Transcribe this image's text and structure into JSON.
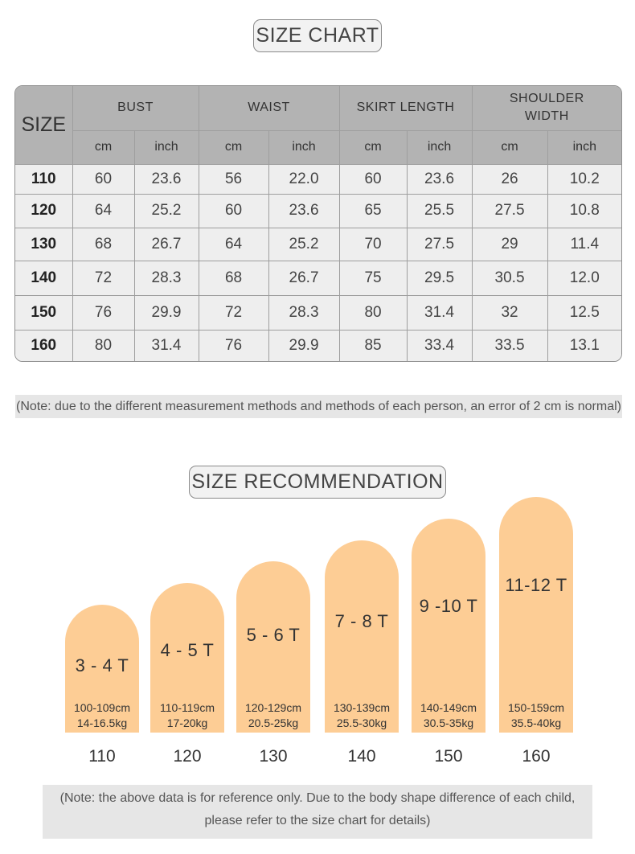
{
  "size_chart": {
    "title": "SIZE CHART",
    "size_header": "SIZE",
    "groups": [
      "BUST",
      "WAIST",
      "SKIRT LENGTH",
      "SHOULDER WIDTH"
    ],
    "units": [
      "cm",
      "inch"
    ],
    "rows": [
      [
        "110",
        "60",
        "23.6",
        "56",
        "22.0",
        "60",
        "23.6",
        "26",
        "10.2"
      ],
      [
        "120",
        "64",
        "25.2",
        "60",
        "23.6",
        "65",
        "25.5",
        "27.5",
        "10.8"
      ],
      [
        "130",
        "68",
        "26.7",
        "64",
        "25.2",
        "70",
        "27.5",
        "29",
        "11.4"
      ],
      [
        "140",
        "72",
        "28.3",
        "68",
        "26.7",
        "75",
        "29.5",
        "30.5",
        "12.0"
      ],
      [
        "150",
        "76",
        "29.9",
        "72",
        "28.3",
        "80",
        "31.4",
        "32",
        "12.5"
      ],
      [
        "160",
        "80",
        "31.4",
        "76",
        "29.9",
        "85",
        "33.4",
        "33.5",
        "13.1"
      ]
    ],
    "note": "(Note: due to the different measurement methods and methods of each person, an error of 2 cm is normal)"
  },
  "recommendation": {
    "title": "SIZE RECOMMENDATION",
    "items": [
      {
        "age": "3 - 4 T",
        "height": "100-109cm",
        "weight": "14-16.5kg",
        "size": "110"
      },
      {
        "age": "4 - 5 T",
        "height": "110-119cm",
        "weight": "17-20kg",
        "size": "120"
      },
      {
        "age": "5 - 6 T",
        "height": "120-129cm",
        "weight": "20.5-25kg",
        "size": "130"
      },
      {
        "age": "7 - 8 T",
        "height": "130-139cm",
        "weight": "25.5-30kg",
        "size": "140"
      },
      {
        "age": "9 -10 T",
        "height": "140-149cm",
        "weight": "30.5-35kg",
        "size": "150"
      },
      {
        "age": "11-12 T",
        "height": "150-159cm",
        "weight": "35.5-40kg",
        "size": "160"
      }
    ],
    "note_line1": "(Note: the above data is for reference only. Due to the body shape difference of each child,",
    "note_line2": "please refer to the size chart for details)"
  },
  "colors": {
    "arch_fill": "#fdcd95",
    "header_fill": "#b3b3b3",
    "body_fill": "#eeeeee"
  }
}
